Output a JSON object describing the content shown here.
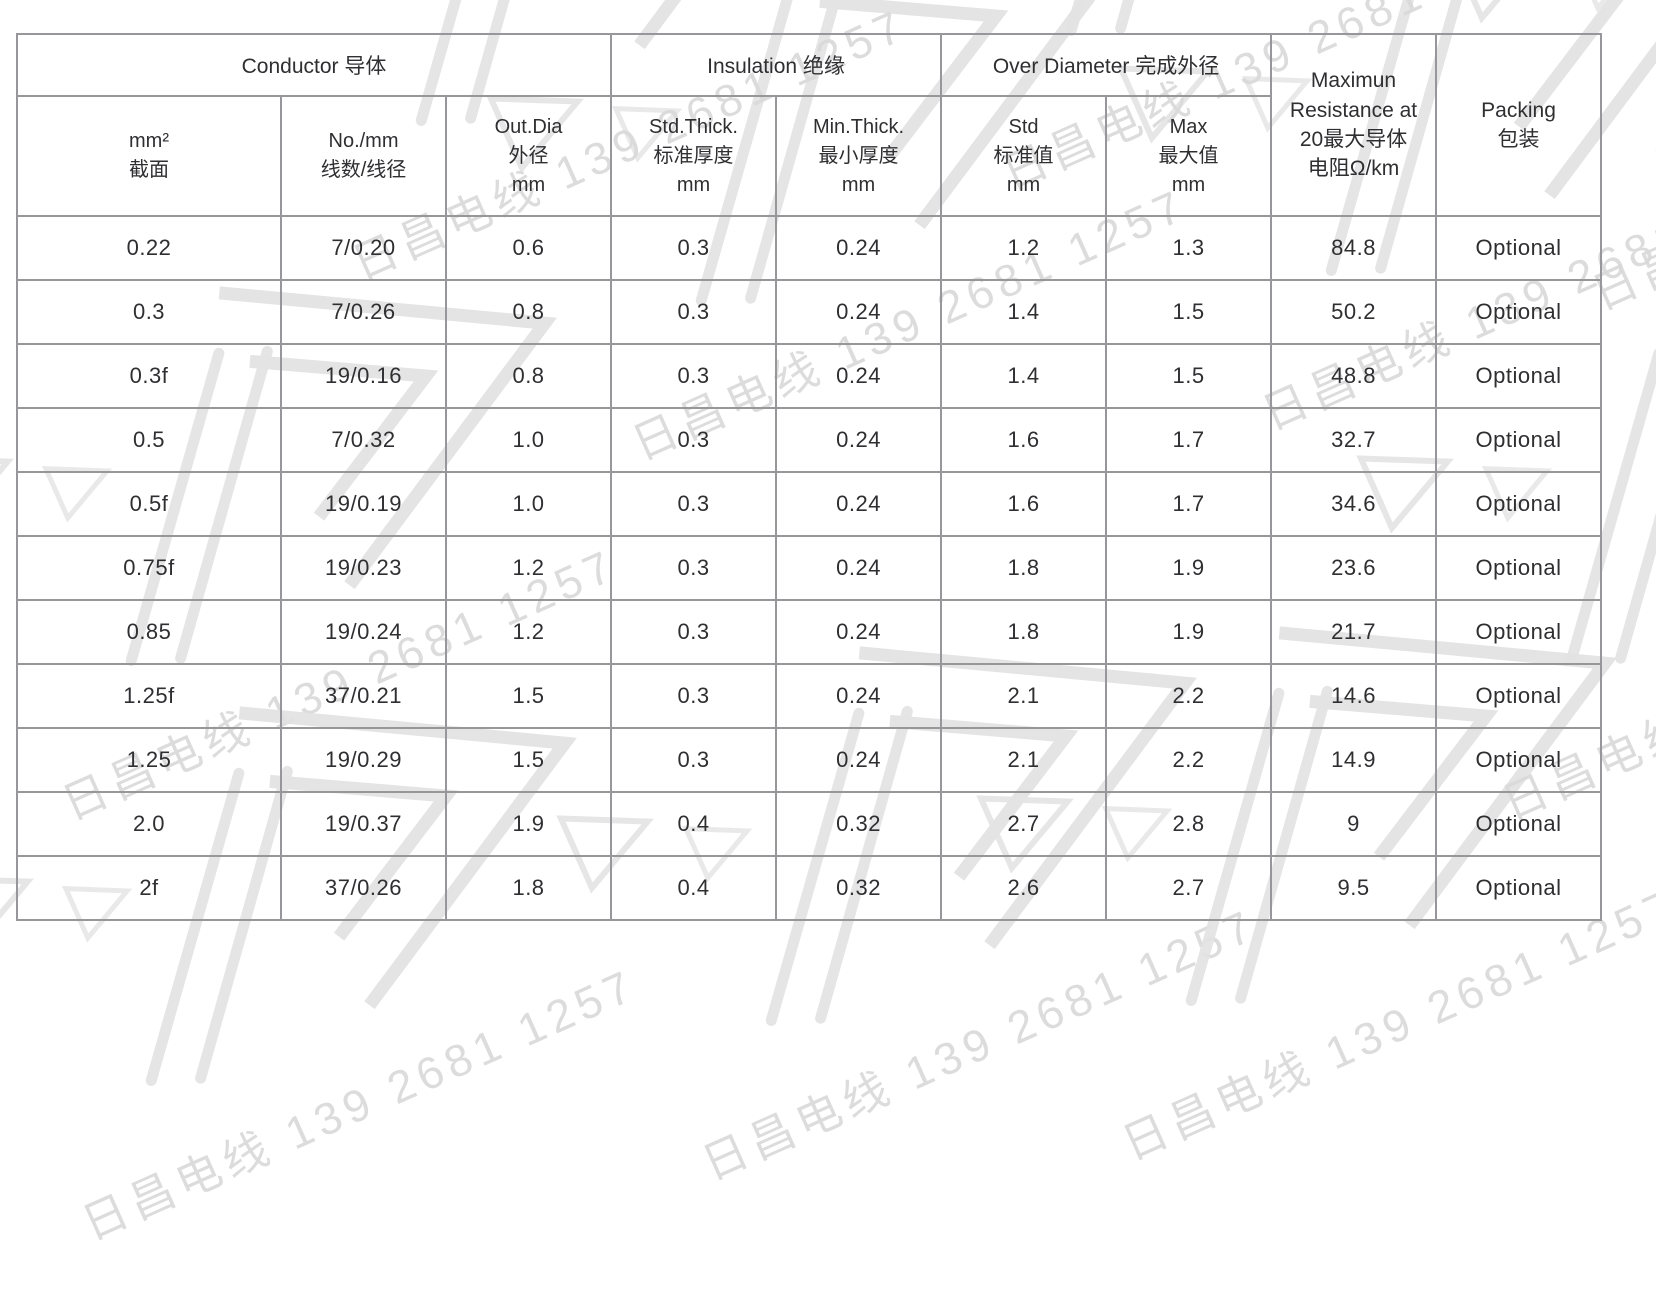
{
  "watermark": {
    "text": "日昌电线 139 2681 1257",
    "text_color": "#d9d9d9",
    "shape_color": "#e4e4e4"
  },
  "table": {
    "border_color": "#97979b",
    "text_color": "#2f2f32",
    "header_groups": [
      {
        "label": "Conductor 导体"
      },
      {
        "label": "Insulation 绝缘"
      },
      {
        "label": "Over Diameter 完成外径"
      }
    ],
    "resistance_header": {
      "lines": [
        "Maximun",
        "Resistance at",
        "20最大导体",
        "电阻Ω/km"
      ]
    },
    "packing_header": {
      "lines": [
        "Packing",
        "包装"
      ]
    },
    "sub_headers": [
      {
        "lines": [
          "mm²",
          "截面"
        ]
      },
      {
        "lines": [
          "No./mm",
          "线数/线径"
        ]
      },
      {
        "lines": [
          "Out.Dia",
          "外径",
          "mm"
        ]
      },
      {
        "lines": [
          "Std.Thick.",
          "标准厚度",
          "mm"
        ]
      },
      {
        "lines": [
          "Min.Thick.",
          "最小厚度",
          "mm"
        ]
      },
      {
        "lines": [
          "Std",
          "标准值",
          "mm"
        ]
      },
      {
        "lines": [
          "Max",
          "最大值",
          "mm"
        ]
      }
    ],
    "rows": [
      [
        "0.22",
        "7/0.20",
        "0.6",
        "0.3",
        "0.24",
        "1.2",
        "1.3",
        "84.8",
        "Optional"
      ],
      [
        "0.3",
        "7/0.26",
        "0.8",
        "0.3",
        "0.24",
        "1.4",
        "1.5",
        "50.2",
        "Optional"
      ],
      [
        "0.3f",
        "19/0.16",
        "0.8",
        "0.3",
        "0.24",
        "1.4",
        "1.5",
        "48.8",
        "Optional"
      ],
      [
        "0.5",
        "7/0.32",
        "1.0",
        "0.3",
        "0.24",
        "1.6",
        "1.7",
        "32.7",
        "Optional"
      ],
      [
        "0.5f",
        "19/0.19",
        "1.0",
        "0.3",
        "0.24",
        "1.6",
        "1.7",
        "34.6",
        "Optional"
      ],
      [
        "0.75f",
        "19/0.23",
        "1.2",
        "0.3",
        "0.24",
        "1.8",
        "1.9",
        "23.6",
        "Optional"
      ],
      [
        "0.85",
        "19/0.24",
        "1.2",
        "0.3",
        "0.24",
        "1.8",
        "1.9",
        "21.7",
        "Optional"
      ],
      [
        "1.25f",
        "37/0.21",
        "1.5",
        "0.3",
        "0.24",
        "2.1",
        "2.2",
        "14.6",
        "Optional"
      ],
      [
        "1.25",
        "19/0.29",
        "1.5",
        "0.3",
        "0.24",
        "2.1",
        "2.2",
        "14.9",
        "Optional"
      ],
      [
        "2.0",
        "19/0.37",
        "1.9",
        "0.4",
        "0.32",
        "2.7",
        "2.8",
        "9",
        "Optional"
      ],
      [
        "2f",
        "37/0.26",
        "1.8",
        "0.4",
        "0.32",
        "2.6",
        "2.7",
        "9.5",
        "Optional"
      ]
    ]
  }
}
